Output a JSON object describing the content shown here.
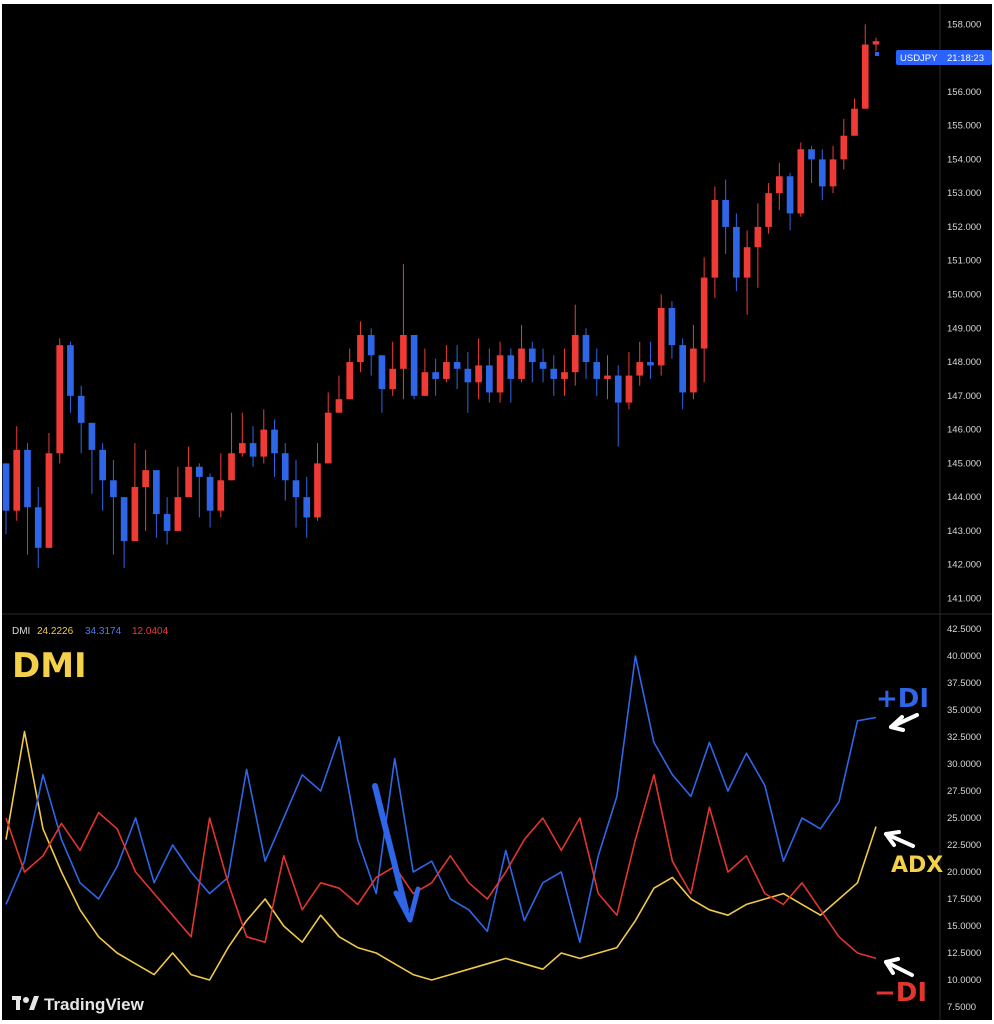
{
  "symbol_badge": {
    "symbol": "USDJPY",
    "time": "21:18:23",
    "color": "#2962ff"
  },
  "indicator_legend": {
    "name": "DMI",
    "adx": "24.2226",
    "plus_di": "34.3174",
    "minus_di": "12.0404"
  },
  "annotations": {
    "dmi": "DMI",
    "plus_di": "+DI",
    "adx": "ADX",
    "minus_di": "−DI"
  },
  "brand": {
    "name": "TradingView"
  },
  "colors": {
    "up": "#ef3b36",
    "down": "#2f66e8",
    "adx": "#f0c94a",
    "plus_di": "#2f66e8",
    "minus_di": "#e2352f",
    "background": "#000000",
    "arrow": "#2f66e8"
  },
  "chart_data": [
    {
      "type": "candlestick",
      "price_axis_ticks": [
        "158.000",
        "157.000",
        "156.000",
        "155.000",
        "154.000",
        "153.000",
        "152.000",
        "151.000",
        "150.000",
        "149.000",
        "148.000",
        "147.000",
        "146.000",
        "145.000",
        "144.000",
        "143.000",
        "142.000",
        "141.000"
      ],
      "ylim": [
        140.6,
        158.6
      ],
      "closes": [
        143.6,
        145.4,
        143.7,
        142.5,
        145.3,
        148.5,
        147.0,
        146.2,
        145.4,
        144.5,
        144.0,
        142.7,
        144.3,
        144.8,
        143.5,
        143.0,
        144.0,
        144.9,
        144.6,
        143.6,
        144.5,
        145.3,
        145.6,
        145.2,
        146.0,
        145.3,
        144.5,
        144.0,
        143.4,
        145.0,
        146.5,
        146.9,
        148.0,
        148.8,
        148.2,
        147.2,
        147.8,
        148.8,
        147.0,
        147.7,
        147.5,
        148.0,
        147.8,
        147.4,
        147.9,
        147.1,
        148.2,
        147.5,
        148.4,
        148.0,
        147.8,
        147.5,
        147.7,
        148.8,
        148.0,
        147.5,
        147.6,
        146.8,
        147.6,
        148.0,
        147.9,
        149.6,
        148.5,
        147.1,
        148.4,
        150.5,
        152.8,
        152.0,
        150.5,
        151.4,
        152.0,
        153.0,
        153.5,
        152.4,
        154.3,
        154.0,
        153.2,
        154.0,
        154.7,
        155.5,
        157.4,
        157.5
      ],
      "highs": [
        145.0,
        146.1,
        145.6,
        144.3,
        145.9,
        148.7,
        148.6,
        147.3,
        146.2,
        145.6,
        145.1,
        143.6,
        145.6,
        145.4,
        144.8,
        144.0,
        144.9,
        145.5,
        145.0,
        144.7,
        145.3,
        146.5,
        146.5,
        146.1,
        146.6,
        146.3,
        145.6,
        145.1,
        144.6,
        145.6,
        147.1,
        147.6,
        148.4,
        149.2,
        149.0,
        148.1,
        148.6,
        150.9,
        148.4,
        148.4,
        148.1,
        148.5,
        148.5,
        148.3,
        148.7,
        148.4,
        148.6,
        148.4,
        149.1,
        148.6,
        148.4,
        148.2,
        148.4,
        149.7,
        149.0,
        148.4,
        148.2,
        147.9,
        148.3,
        148.6,
        148.6,
        150.0,
        149.8,
        148.7,
        149.1,
        151.1,
        153.2,
        153.4,
        152.4,
        151.9,
        152.7,
        153.3,
        153.9,
        153.6,
        154.5,
        154.4,
        154.3,
        154.4,
        155.2,
        155.8,
        158.0,
        157.6
      ],
      "lows": [
        142.9,
        143.3,
        142.3,
        141.9,
        142.8,
        145.0,
        146.5,
        145.3,
        144.1,
        143.6,
        142.3,
        141.9,
        142.9,
        143.0,
        142.8,
        142.6,
        143.4,
        144.0,
        143.4,
        143.1,
        143.4,
        144.6,
        145.2,
        144.9,
        145.0,
        144.6,
        143.9,
        143.1,
        142.8,
        143.3,
        145.2,
        146.5,
        147.0,
        147.7,
        147.6,
        146.5,
        147.0,
        146.9,
        146.9,
        147.0,
        147.0,
        147.4,
        147.2,
        146.5,
        146.9,
        146.8,
        146.8,
        146.8,
        147.4,
        147.4,
        147.4,
        147.0,
        147.0,
        147.3,
        147.5,
        147.0,
        146.9,
        145.5,
        146.6,
        147.3,
        147.5,
        147.6,
        148.1,
        146.6,
        146.9,
        147.4,
        149.9,
        151.2,
        150.1,
        149.4,
        150.2,
        151.8,
        152.5,
        151.9,
        152.3,
        153.3,
        152.8,
        153.0,
        153.7,
        155.1,
        155.7,
        157.2
      ]
    },
    {
      "type": "line",
      "title": "DMI",
      "axis_ticks": [
        "42.5000",
        "40.0000",
        "37.5000",
        "35.0000",
        "32.5000",
        "30.0000",
        "27.5000",
        "25.0000",
        "22.5000",
        "20.0000",
        "17.5000",
        "15.0000",
        "12.5000",
        "10.0000",
        "7.5000"
      ],
      "ylim": [
        6.3,
        43.7
      ],
      "series": [
        {
          "name": "ADX",
          "values": [
            23.0,
            33.0,
            24.0,
            20.0,
            16.5,
            14.0,
            12.5,
            11.5,
            10.5,
            12.5,
            10.5,
            10.0,
            13.0,
            15.5,
            17.5,
            15.0,
            13.5,
            16.0,
            14.0,
            13.0,
            12.5,
            11.5,
            10.5,
            10.0,
            10.5,
            11.0,
            11.5,
            12.0,
            11.5,
            11.0,
            12.5,
            12.0,
            12.5,
            13.0,
            15.5,
            18.5,
            19.5,
            17.5,
            16.5,
            16.0,
            17.0,
            17.5,
            18.0,
            17.0,
            16.0,
            17.5,
            19.0,
            24.2
          ]
        },
        {
          "name": "+DI",
          "values": [
            17.0,
            21.0,
            29.0,
            23.0,
            19.0,
            17.5,
            20.5,
            25.0,
            19.0,
            22.5,
            20.0,
            18.0,
            19.5,
            29.5,
            21.0,
            25.0,
            29.0,
            27.5,
            32.5,
            23.0,
            18.0,
            30.5,
            20.0,
            21.0,
            17.5,
            16.5,
            14.5,
            22.0,
            15.5,
            19.0,
            20.0,
            13.5,
            21.5,
            27.0,
            40.0,
            32.0,
            29.0,
            27.0,
            32.0,
            27.5,
            31.0,
            28.0,
            21.0,
            25.0,
            24.0,
            26.5,
            34.0,
            34.3
          ]
        },
        {
          "name": "−DI",
          "values": [
            25.0,
            20.0,
            21.5,
            24.5,
            22.0,
            25.5,
            24.0,
            20.0,
            18.0,
            16.0,
            14.0,
            25.0,
            19.0,
            14.0,
            13.5,
            21.5,
            16.5,
            19.0,
            18.5,
            17.0,
            19.5,
            20.5,
            18.0,
            19.0,
            21.5,
            19.0,
            17.5,
            20.0,
            23.0,
            25.0,
            22.0,
            25.0,
            18.0,
            16.0,
            23.0,
            29.0,
            21.0,
            18.0,
            26.0,
            20.0,
            21.5,
            18.0,
            17.0,
            19.0,
            16.5,
            14.0,
            12.5,
            12.0
          ]
        }
      ]
    }
  ]
}
